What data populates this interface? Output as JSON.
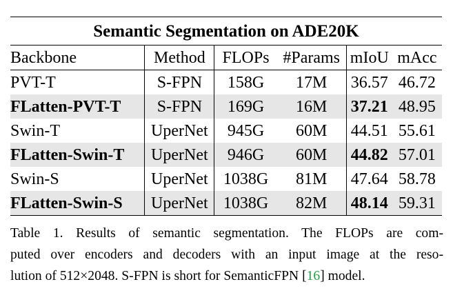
{
  "table": {
    "title": "Semantic Segmentation on ADE20K",
    "headers": {
      "backbone": "Backbone",
      "method": "Method",
      "flops": "FLOPs",
      "params": "#Params",
      "miou": "mIoU",
      "macc": "mAcc"
    },
    "rows": [
      {
        "backbone": "PVT-T",
        "method": "S-FPN",
        "flops": "158G",
        "params": "17M",
        "miou": "36.57",
        "macc": "46.72"
      },
      {
        "backbone": "FLatten-PVT-T",
        "method": "S-FPN",
        "flops": "169G",
        "params": "16M",
        "miou": "37.21",
        "macc": "48.95"
      },
      {
        "backbone": "Swin-T",
        "method": "UperNet",
        "flops": "945G",
        "params": "60M",
        "miou": "44.51",
        "macc": "55.61"
      },
      {
        "backbone": "FLatten-Swin-T",
        "method": "UperNet",
        "flops": "946G",
        "params": "60M",
        "miou": "44.82",
        "macc": "57.01"
      },
      {
        "backbone": "Swin-S",
        "method": "UperNet",
        "flops": "1038G",
        "params": "81M",
        "miou": "47.64",
        "macc": "58.78"
      },
      {
        "backbone": "FLatten-Swin-S",
        "method": "UperNet",
        "flops": "1038G",
        "params": "82M",
        "miou": "48.14",
        "macc": "59.31"
      }
    ]
  },
  "caption": {
    "line1": "Table 1. Results of semantic segmentation. The FLOPs are com-",
    "line2": "puted over encoders and decoders with an input image at the reso-",
    "line3_before": "lution of 512×2048. S-FPN is short for SemanticFPN [",
    "line3_cite": "16",
    "line3_after": "] model.",
    "cite_color": "#22a045"
  },
  "colors": {
    "shaded_row": "#e6e6e6"
  }
}
